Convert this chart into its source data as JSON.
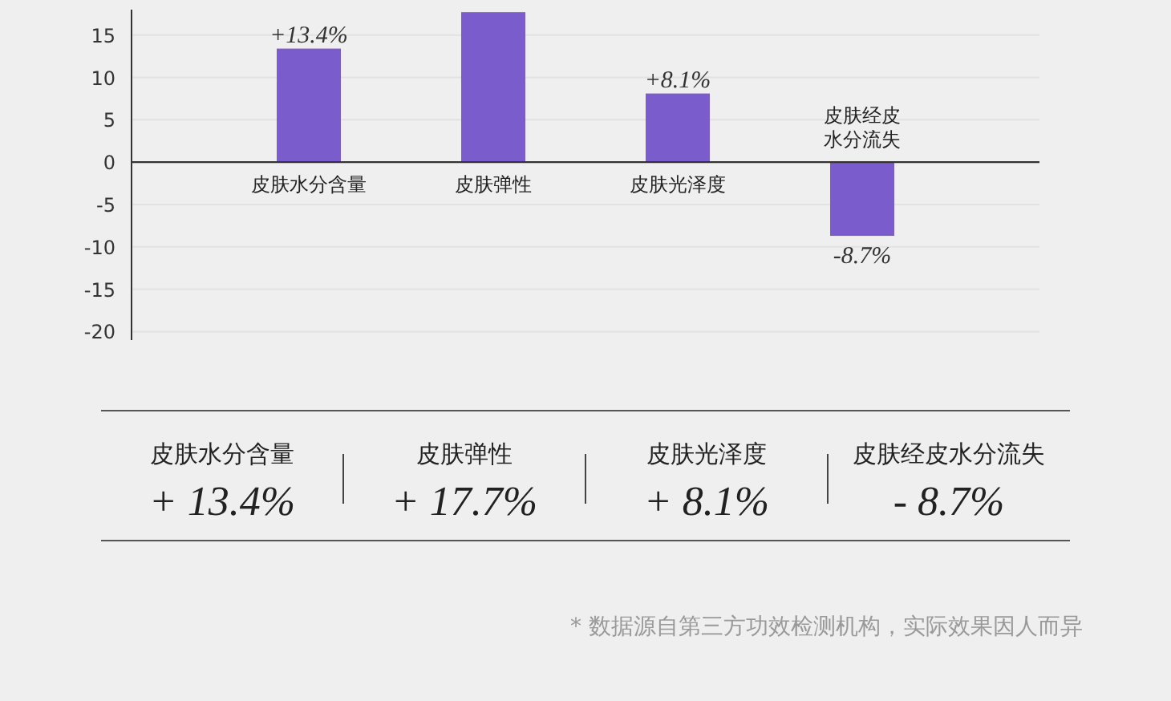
{
  "chart_data": {
    "type": "bar",
    "categories": [
      "皮肤水分含量",
      "皮肤弹性",
      "皮肤光泽度",
      "皮肤经皮水分流失"
    ],
    "values": [
      13.4,
      17.7,
      8.1,
      -8.7
    ],
    "value_labels": [
      "+13.4%",
      null,
      "+8.1%",
      "-8.7%"
    ],
    "color": "#7b5ccc",
    "ylim": [
      -21,
      18
    ],
    "yticks": [
      -20,
      -15,
      -10,
      -5,
      0,
      5,
      10,
      15
    ],
    "grid": "y",
    "annotations": [
      "+ 13.4%",
      "+ 17.7%",
      "+ 8.1%",
      "- 8.7%",
      "* 数据源自第三方功效检测机构，实际效果因人而异"
    ]
  }
}
